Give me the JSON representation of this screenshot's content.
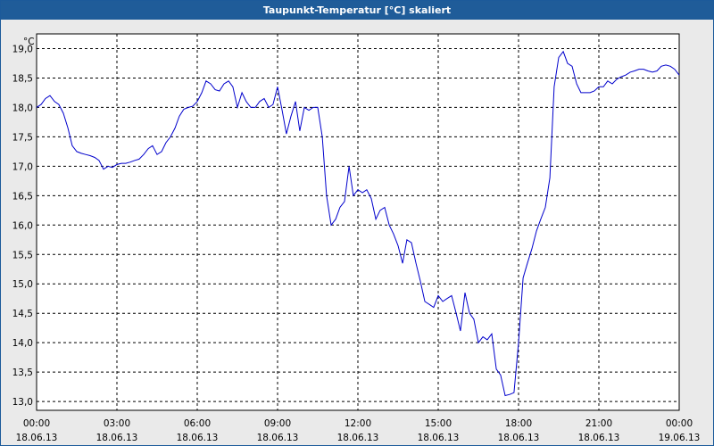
{
  "window": {
    "title": "Taupunkt-Temperatur [°C] skaliert"
  },
  "chart_data": {
    "type": "line",
    "title": "Taupunkt-Temperatur [°C] skaliert",
    "ylabel": "°C",
    "xlabel": "",
    "ylim": [
      12.85,
      19.25
    ],
    "xlim": [
      0,
      24
    ],
    "grid": true,
    "legend": "none",
    "line_color": "#0000cc",
    "y_ticks": [
      "13,0",
      "13,5",
      "14,0",
      "14,5",
      "15,0",
      "15,5",
      "16,0",
      "16,5",
      "17,0",
      "17,5",
      "18,0",
      "18,5",
      "19,0"
    ],
    "x_ticks": [
      {
        "time": "00:00",
        "date": "18.06.13"
      },
      {
        "time": "03:00",
        "date": "18.06.13"
      },
      {
        "time": "06:00",
        "date": "18.06.13"
      },
      {
        "time": "09:00",
        "date": "18.06.13"
      },
      {
        "time": "12:00",
        "date": "18.06.13"
      },
      {
        "time": "15:00",
        "date": "18.06.13"
      },
      {
        "time": "18:00",
        "date": "18.06.13"
      },
      {
        "time": "21:00",
        "date": "18.06.13"
      },
      {
        "time": "00:00",
        "date": "19.06.13"
      }
    ],
    "series": [
      {
        "x": [
          0,
          0.17,
          0.33,
          0.5,
          0.67,
          0.83,
          1.0,
          1.17,
          1.33,
          1.5,
          1.67,
          1.83,
          2.0,
          2.17,
          2.33,
          2.5,
          2.67,
          2.83,
          3.0,
          3.17,
          3.33,
          3.5,
          3.67,
          3.83,
          4.0,
          4.17,
          4.33,
          4.5,
          4.67,
          4.83,
          5.0,
          5.17,
          5.33,
          5.5,
          5.67,
          5.83,
          6.0,
          6.17,
          6.33,
          6.5,
          6.67,
          6.83,
          7.0,
          7.17,
          7.33,
          7.5,
          7.67,
          7.83,
          8.0,
          8.17,
          8.33,
          8.5,
          8.67,
          8.83,
          9.0,
          9.17,
          9.33,
          9.5,
          9.67,
          9.83,
          10.0,
          10.17,
          10.33,
          10.5,
          10.67,
          10.83,
          11.0,
          11.17,
          11.33,
          11.5,
          11.67,
          11.83,
          12.0,
          12.17,
          12.33,
          12.5,
          12.67,
          12.83,
          13.0,
          13.17,
          13.33,
          13.5,
          13.67,
          13.83,
          14.0,
          14.17,
          14.33,
          14.5,
          14.67,
          14.83,
          15.0,
          15.17,
          15.33,
          15.5,
          15.67,
          15.83,
          16.0,
          16.17,
          16.33,
          16.5,
          16.67,
          16.83,
          17.0,
          17.17,
          17.33,
          17.5,
          17.67,
          17.83,
          18.0,
          18.17,
          18.33,
          18.5,
          18.67,
          18.83,
          19.0,
          19.17,
          19.33,
          19.5,
          19.67,
          19.83,
          20.0,
          20.17,
          20.33,
          20.5,
          20.67,
          20.83,
          21.0,
          21.17,
          21.33,
          21.5,
          21.67,
          21.83,
          22.0,
          22.17,
          22.33,
          22.5,
          22.67,
          22.83,
          23.0,
          23.17,
          23.33,
          23.5,
          23.67,
          23.83,
          24.0
        ],
        "values": [
          18.0,
          18.05,
          18.15,
          18.2,
          18.1,
          18.05,
          17.9,
          17.65,
          17.35,
          17.25,
          17.22,
          17.2,
          17.18,
          17.15,
          17.1,
          16.95,
          17.0,
          16.98,
          17.03,
          17.05,
          17.05,
          17.07,
          17.1,
          17.12,
          17.2,
          17.3,
          17.35,
          17.2,
          17.25,
          17.4,
          17.5,
          17.65,
          17.85,
          17.97,
          18.0,
          18.02,
          18.1,
          18.25,
          18.45,
          18.4,
          18.3,
          18.28,
          18.4,
          18.45,
          18.35,
          18.0,
          18.25,
          18.1,
          18.0,
          18.0,
          18.1,
          18.15,
          18.0,
          18.05,
          18.35,
          17.95,
          17.55,
          17.85,
          18.1,
          17.6,
          18.0,
          17.95,
          18.0,
          18.0,
          17.5,
          16.5,
          16.0,
          16.1,
          16.3,
          16.4,
          17.0,
          16.5,
          16.6,
          16.55,
          16.6,
          16.45,
          16.1,
          16.25,
          16.3,
          16.0,
          15.85,
          15.65,
          15.35,
          15.75,
          15.7,
          15.35,
          15.05,
          14.7,
          14.65,
          14.6,
          14.8,
          14.7,
          14.75,
          14.8,
          14.5,
          14.2,
          14.85,
          14.5,
          14.4,
          14.0,
          14.1,
          14.05,
          14.15,
          13.55,
          13.45,
          13.1,
          13.12,
          13.15,
          14.0,
          15.1,
          15.35,
          15.6,
          15.9,
          16.1,
          16.3,
          16.8,
          18.35,
          18.85,
          18.95,
          18.75,
          18.7,
          18.4,
          18.25,
          18.25,
          18.25,
          18.28,
          18.35,
          18.35,
          18.45,
          18.4,
          18.48,
          18.52,
          18.55,
          18.6,
          18.62,
          18.65,
          18.65,
          18.62,
          18.6,
          18.62,
          18.7,
          18.72,
          18.7,
          18.65,
          18.55
        ]
      }
    ]
  }
}
